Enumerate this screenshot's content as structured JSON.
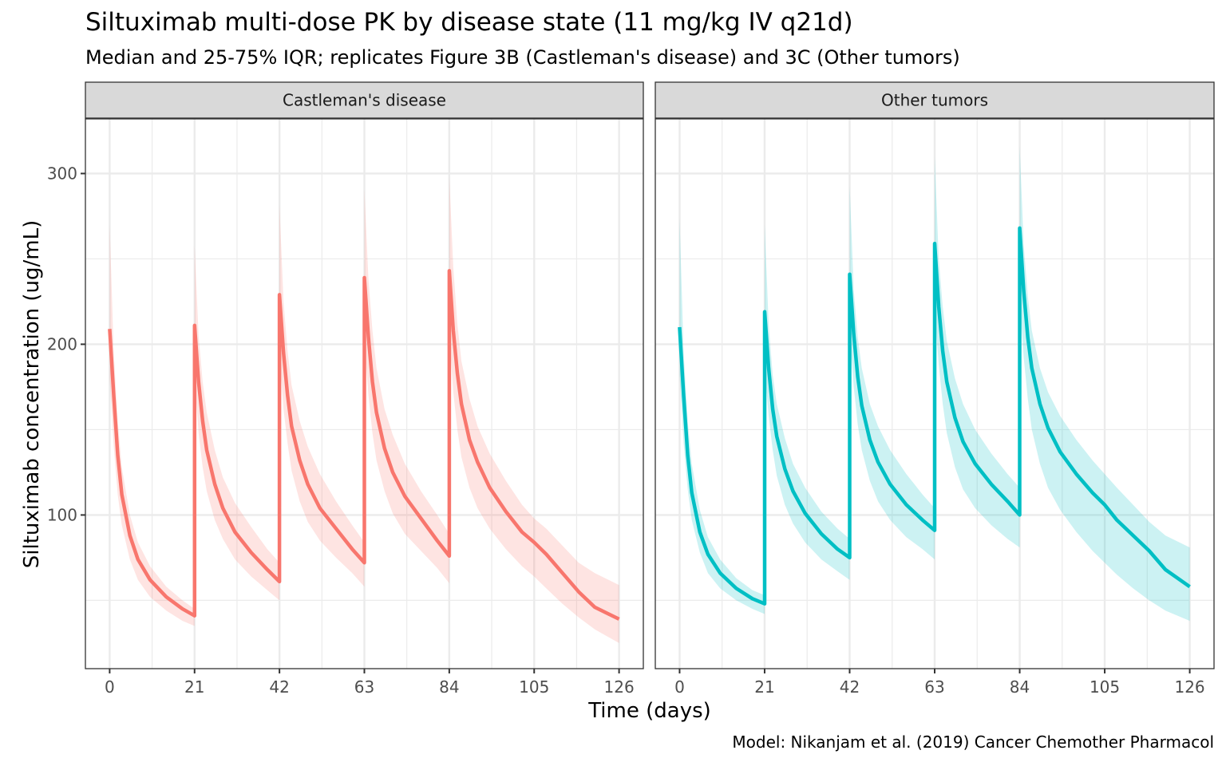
{
  "chart_data": {
    "type": "line",
    "title": "Siltuximab multi-dose PK by disease state (11 mg/kg IV q21d)",
    "subtitle": "Median and 25-75% IQR; replicates Figure 3B (Castleman's disease) and 3C (Other tumors)",
    "caption": "Model: Nikanjam et al. (2019) Cancer Chemother Pharmacol",
    "xlabel": "Time (days)",
    "ylabel": "Siltuximab concentration (ug/mL)",
    "xlim": [
      -6,
      132
    ],
    "ylim": [
      10,
      332
    ],
    "x_ticks": [
      0,
      21,
      42,
      63,
      84,
      105,
      126
    ],
    "x_tick_labels": [
      "0",
      "21",
      "42",
      "63",
      "84",
      "105",
      "126"
    ],
    "y_ticks": [
      100,
      200,
      300
    ],
    "y_tick_labels": [
      "100",
      "200",
      "300"
    ],
    "grid": true,
    "dose_times": [
      0,
      21,
      42,
      63,
      84
    ],
    "panels": [
      {
        "label": "Castleman's disease",
        "color": "#F8766D",
        "ribbon_color": "#F8766D",
        "series": [
          {
            "name": "median",
            "x": [
              0,
              1,
              2,
              3,
              5,
              7,
              10,
              14,
              18,
              21
            ],
            "y": [
              209,
              170,
              135,
              112,
              88,
              74,
              62,
              52,
              45,
              41
            ]
          },
          {
            "name": "median",
            "x": [
              21,
              22,
              23,
              24,
              26,
              28,
              31,
              35,
              39,
              42
            ],
            "y": [
              211,
              178,
              155,
              138,
              118,
              104,
              90,
              78,
              68,
              61
            ]
          },
          {
            "name": "median",
            "x": [
              42,
              43,
              44,
              45,
              47,
              49,
              52,
              56,
              60,
              63
            ],
            "y": [
              229,
              195,
              170,
              152,
              132,
              118,
              104,
              92,
              80,
              72
            ]
          },
          {
            "name": "median",
            "x": [
              63,
              64,
              65,
              66,
              68,
              70,
              73,
              77,
              81,
              84
            ],
            "y": [
              239,
              204,
              178,
              160,
              139,
              125,
              111,
              98,
              85,
              76
            ]
          },
          {
            "name": "median",
            "x": [
              84,
              85,
              86,
              87,
              89,
              91,
              94,
              98,
              102,
              105,
              108,
              112,
              116,
              120,
              126
            ],
            "y": [
              243,
              208,
              183,
              165,
              144,
              131,
              116,
              102,
              90,
              84,
              77,
              66,
              55,
              46,
              39
            ]
          }
        ],
        "iqr_upper": [
          {
            "x": [
              0,
              1,
              2,
              3,
              5,
              7,
              10,
              14,
              18,
              21
            ],
            "y": [
              270,
              195,
              155,
              128,
              100,
              84,
              70,
              58,
              50,
              45
            ]
          },
          {
            "x": [
              21,
              22,
              23,
              24,
              26,
              28,
              31,
              35,
              39,
              42
            ],
            "y": [
              258,
              205,
              178,
              160,
              138,
              122,
              107,
              93,
              80,
              72
            ]
          },
          {
            "x": [
              42,
              43,
              44,
              45,
              47,
              49,
              52,
              56,
              60,
              63
            ],
            "y": [
              282,
              225,
              196,
              176,
              155,
              140,
              124,
              108,
              94,
              84
            ]
          },
          {
            "x": [
              63,
              64,
              65,
              66,
              68,
              70,
              73,
              77,
              81,
              84
            ],
            "y": [
              291,
              238,
              208,
              186,
              162,
              147,
              130,
              114,
              100,
              89
            ]
          },
          {
            "x": [
              84,
              85,
              86,
              87,
              89,
              91,
              94,
              98,
              102,
              105,
              108,
              112,
              116,
              120,
              126
            ],
            "y": [
              298,
              245,
              212,
              190,
              168,
              152,
              136,
              120,
              106,
              98,
              92,
              82,
              72,
              66,
              59
            ]
          }
        ],
        "iqr_lower": [
          {
            "x": [
              0,
              1,
              2,
              3,
              5,
              7,
              10,
              14,
              18,
              21
            ],
            "y": [
              180,
              140,
              112,
              94,
              74,
              62,
              52,
              44,
              38,
              35
            ]
          },
          {
            "x": [
              21,
              22,
              23,
              24,
              26,
              28,
              31,
              35,
              39,
              42
            ],
            "y": [
              180,
              148,
              128,
              114,
              97,
              86,
              74,
              64,
              56,
              50
            ]
          },
          {
            "x": [
              42,
              43,
              44,
              45,
              47,
              49,
              52,
              56,
              60,
              63
            ],
            "y": [
              194,
              162,
              142,
              126,
              108,
              96,
              85,
              75,
              66,
              58
            ]
          },
          {
            "x": [
              63,
              64,
              65,
              66,
              68,
              70,
              73,
              77,
              81,
              84
            ],
            "y": [
              202,
              170,
              148,
              132,
              114,
              101,
              89,
              79,
              69,
              60
            ]
          },
          {
            "x": [
              84,
              85,
              86,
              87,
              89,
              91,
              94,
              98,
              102,
              105,
              108,
              112,
              116,
              120,
              126
            ],
            "y": [
              204,
              172,
              150,
              134,
              116,
              104,
              92,
              80,
              70,
              64,
              57,
              48,
              40,
              33,
              25
            ]
          }
        ]
      },
      {
        "label": "Other tumors",
        "color": "#00BFC4",
        "ribbon_color": "#00BFC4",
        "series": [
          {
            "name": "median",
            "x": [
              0,
              1,
              2,
              3,
              5,
              7,
              10,
              14,
              18,
              21
            ],
            "y": [
              210,
              170,
              135,
              113,
              90,
              77,
              66,
              57,
              51,
              48
            ]
          },
          {
            "name": "median",
            "x": [
              21,
              22,
              23,
              24,
              26,
              28,
              31,
              35,
              39,
              42
            ],
            "y": [
              219,
              186,
              162,
              146,
              127,
              114,
              101,
              89,
              80,
              75
            ]
          },
          {
            "name": "median",
            "x": [
              42,
              43,
              44,
              45,
              47,
              49,
              52,
              56,
              60,
              63
            ],
            "y": [
              241,
              206,
              181,
              164,
              144,
              131,
              118,
              106,
              97,
              91
            ]
          },
          {
            "name": "median",
            "x": [
              63,
              64,
              65,
              66,
              68,
              70,
              73,
              77,
              81,
              84
            ],
            "y": [
              259,
              222,
              196,
              178,
              157,
              143,
              130,
              118,
              108,
              100
            ]
          },
          {
            "name": "median",
            "x": [
              84,
              85,
              86,
              87,
              89,
              91,
              94,
              98,
              102,
              105,
              108,
              112,
              116,
              120,
              126
            ],
            "y": [
              268,
              231,
              204,
              186,
              165,
              151,
              137,
              124,
              113,
              106,
              97,
              88,
              79,
              68,
              58
            ]
          }
        ],
        "iqr_upper": [
          {
            "x": [
              0,
              1,
              2,
              3,
              5,
              7,
              10,
              14,
              18,
              21
            ],
            "y": [
              274,
              195,
              155,
              130,
              103,
              87,
              74,
              63,
              56,
              53
            ]
          },
          {
            "x": [
              21,
              22,
              23,
              24,
              26,
              28,
              31,
              35,
              39,
              42
            ],
            "y": [
              270,
              212,
              182,
              165,
              145,
              130,
              116,
              102,
              92,
              86
            ]
          },
          {
            "x": [
              42,
              43,
              44,
              45,
              47,
              49,
              52,
              56,
              60,
              63
            ],
            "y": [
              293,
              232,
              204,
              186,
              165,
              152,
              138,
              124,
              112,
              104
            ]
          },
          {
            "x": [
              63,
              64,
              65,
              66,
              68,
              70,
              73,
              77,
              81,
              84
            ],
            "y": [
              310,
              250,
              222,
              202,
              180,
              165,
              150,
              136,
              124,
              116
            ]
          },
          {
            "x": [
              84,
              85,
              86,
              87,
              89,
              91,
              94,
              98,
              102,
              105,
              108,
              112,
              116,
              120,
              126
            ],
            "y": [
              316,
              258,
              228,
              208,
              186,
              172,
              158,
              144,
              132,
              124,
              116,
              106,
              96,
              88,
              81
            ]
          }
        ],
        "iqr_lower": [
          {
            "x": [
              0,
              1,
              2,
              3,
              5,
              7,
              10,
              14,
              18,
              21
            ],
            "y": [
              182,
              142,
              115,
              97,
              78,
              66,
              57,
              50,
              45,
              42
            ]
          },
          {
            "x": [
              21,
              22,
              23,
              24,
              26,
              28,
              31,
              35,
              39,
              42
            ],
            "y": [
              186,
              158,
              138,
              123,
              106,
              95,
              84,
              74,
              67,
              62
            ]
          },
          {
            "x": [
              42,
              43,
              44,
              45,
              47,
              49,
              52,
              56,
              60,
              63
            ],
            "y": [
              206,
              175,
              153,
              138,
              120,
              108,
              97,
              87,
              80,
              74
            ]
          },
          {
            "x": [
              63,
              64,
              65,
              66,
              68,
              70,
              73,
              77,
              81,
              84
            ],
            "y": [
              220,
              188,
              165,
              148,
              128,
              115,
              104,
              94,
              86,
              81
            ]
          },
          {
            "x": [
              84,
              85,
              86,
              87,
              89,
              91,
              94,
              98,
              102,
              105,
              108,
              112,
              116,
              120,
              126
            ],
            "y": [
              226,
              192,
              168,
              150,
              130,
              116,
              103,
              90,
              79,
              72,
              65,
              57,
              50,
              44,
              38
            ]
          }
        ]
      }
    ]
  }
}
